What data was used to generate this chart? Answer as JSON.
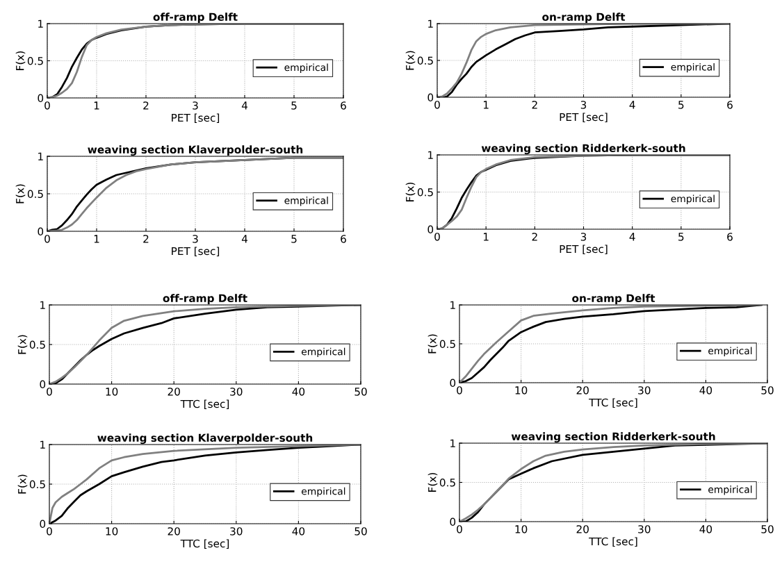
{
  "chart_data": [
    {
      "type": "line",
      "title": "off-ramp Delft",
      "xlabel": "PET [sec]",
      "ylabel": "F(x)",
      "xlim": [
        0,
        6
      ],
      "ylim": [
        0,
        1
      ],
      "xticks": [
        0,
        1,
        2,
        3,
        4,
        5,
        6
      ],
      "yticks": [
        0,
        0.5,
        1
      ],
      "grid": true,
      "legend": "right",
      "series": [
        {
          "name": "empirical",
          "color": "#000000",
          "x": [
            0,
            0.1,
            0.2,
            0.3,
            0.4,
            0.5,
            0.6,
            0.7,
            0.8,
            0.9,
            1.0,
            1.2,
            1.5,
            2,
            2.5,
            3,
            4,
            6
          ],
          "values": [
            0,
            0.01,
            0.05,
            0.15,
            0.27,
            0.42,
            0.54,
            0.65,
            0.73,
            0.78,
            0.81,
            0.86,
            0.91,
            0.96,
            0.98,
            0.99,
            1.0,
            1.0
          ]
        },
        {
          "color": "#808080",
          "x": [
            0,
            0.1,
            0.2,
            0.3,
            0.4,
            0.5,
            0.6,
            0.7,
            0.8,
            0.9,
            1.0,
            1.2,
            1.5,
            2,
            2.5,
            3,
            4,
            6
          ],
          "values": [
            0,
            0.01,
            0.03,
            0.07,
            0.12,
            0.2,
            0.35,
            0.55,
            0.71,
            0.78,
            0.82,
            0.87,
            0.92,
            0.96,
            0.98,
            0.99,
            1.0,
            1.0
          ]
        }
      ]
    },
    {
      "type": "line",
      "title": "on-ramp Delft",
      "xlabel": "PET [sec]",
      "ylabel": "F(x)",
      "xlim": [
        0,
        6
      ],
      "ylim": [
        0,
        1
      ],
      "xticks": [
        0,
        1,
        2,
        3,
        4,
        5,
        6
      ],
      "yticks": [
        0,
        0.5,
        1
      ],
      "grid": true,
      "legend": "right",
      "series": [
        {
          "name": "empirical",
          "color": "#000000",
          "x": [
            0,
            0.15,
            0.2,
            0.3,
            0.4,
            0.5,
            0.6,
            0.7,
            0.8,
            1.0,
            1.2,
            1.4,
            1.6,
            1.8,
            2.0,
            2.5,
            3,
            3.5,
            4,
            5,
            6
          ],
          "values": [
            0,
            0,
            0.01,
            0.07,
            0.17,
            0.25,
            0.32,
            0.41,
            0.48,
            0.57,
            0.65,
            0.72,
            0.79,
            0.84,
            0.88,
            0.9,
            0.92,
            0.95,
            0.96,
            0.98,
            1.0
          ]
        },
        {
          "color": "#808080",
          "x": [
            0,
            0.1,
            0.2,
            0.3,
            0.4,
            0.5,
            0.6,
            0.7,
            0.8,
            0.9,
            1.0,
            1.2,
            1.5,
            2,
            3,
            4,
            6
          ],
          "values": [
            0,
            0.01,
            0.05,
            0.12,
            0.2,
            0.32,
            0.47,
            0.64,
            0.76,
            0.82,
            0.86,
            0.91,
            0.95,
            0.98,
            0.99,
            1.0,
            1.0
          ]
        }
      ]
    },
    {
      "type": "line",
      "title": "weaving section Klaverpolder-south",
      "xlabel": "PET [sec]",
      "ylabel": "F(x)",
      "xlim": [
        0,
        6
      ],
      "ylim": [
        0,
        1
      ],
      "xticks": [
        0,
        1,
        2,
        3,
        4,
        5,
        6
      ],
      "yticks": [
        0,
        0.5,
        1
      ],
      "grid": true,
      "legend": "right",
      "series": [
        {
          "name": "empirical",
          "color": "#000000",
          "x": [
            0,
            0.1,
            0.2,
            0.3,
            0.4,
            0.5,
            0.6,
            0.7,
            0.8,
            0.9,
            1.0,
            1.2,
            1.4,
            1.6,
            2.0,
            2.5,
            3,
            4,
            5,
            6
          ],
          "values": [
            0,
            0.02,
            0.03,
            0.08,
            0.15,
            0.23,
            0.33,
            0.41,
            0.49,
            0.56,
            0.62,
            0.69,
            0.75,
            0.78,
            0.84,
            0.89,
            0.92,
            0.95,
            0.98,
            0.98
          ]
        },
        {
          "color": "#808080",
          "x": [
            0,
            0.2,
            0.3,
            0.4,
            0.5,
            0.6,
            0.7,
            0.8,
            1.0,
            1.2,
            1.4,
            1.6,
            1.8,
            2.0,
            2.5,
            3,
            4,
            5,
            6
          ],
          "values": [
            0,
            0.01,
            0.02,
            0.05,
            0.09,
            0.15,
            0.23,
            0.31,
            0.45,
            0.58,
            0.68,
            0.75,
            0.8,
            0.83,
            0.89,
            0.92,
            0.95,
            0.98,
            0.98
          ]
        }
      ]
    },
    {
      "type": "line",
      "title": "weaving section Ridderkerk-south",
      "xlabel": "PET [sec]",
      "ylabel": "F(x)",
      "xlim": [
        0,
        6
      ],
      "ylim": [
        0,
        1
      ],
      "xticks": [
        0,
        1,
        2,
        3,
        4,
        5,
        6
      ],
      "yticks": [
        0,
        0.5,
        1
      ],
      "grid": true,
      "legend": "right",
      "series": [
        {
          "name": "empirical",
          "color": "#000000",
          "x": [
            0,
            0.1,
            0.2,
            0.3,
            0.4,
            0.5,
            0.6,
            0.7,
            0.8,
            0.9,
            1.0,
            1.2,
            1.5,
            2,
            3,
            4,
            6
          ],
          "values": [
            0,
            0.01,
            0.06,
            0.15,
            0.28,
            0.42,
            0.53,
            0.63,
            0.72,
            0.77,
            0.8,
            0.86,
            0.92,
            0.96,
            0.99,
            1.0,
            1.0
          ]
        },
        {
          "color": "#808080",
          "x": [
            0,
            0.1,
            0.2,
            0.3,
            0.4,
            0.5,
            0.6,
            0.7,
            0.8,
            0.9,
            1.0,
            1.2,
            1.5,
            2,
            3,
            4,
            6
          ],
          "values": [
            0,
            0.01,
            0.06,
            0.11,
            0.17,
            0.26,
            0.42,
            0.57,
            0.7,
            0.77,
            0.81,
            0.87,
            0.93,
            0.97,
            0.99,
            1.0,
            1.0
          ]
        }
      ]
    },
    {
      "type": "line",
      "title": "off-ramp Delft",
      "xlabel": "TTC [sec]",
      "ylabel": "F(x)",
      "xlim": [
        0,
        50
      ],
      "ylim": [
        0,
        1
      ],
      "xticks": [
        0,
        10,
        20,
        30,
        40,
        50
      ],
      "yticks": [
        0,
        0.5,
        1
      ],
      "grid": true,
      "legend": "right",
      "series": [
        {
          "name": "empirical",
          "color": "#000000",
          "x": [
            0,
            1,
            2,
            3,
            4,
            5,
            6,
            7,
            8,
            10,
            12,
            15,
            18,
            20,
            25,
            30,
            35,
            40,
            50
          ],
          "values": [
            0,
            0.01,
            0.06,
            0.14,
            0.22,
            0.3,
            0.37,
            0.43,
            0.48,
            0.57,
            0.64,
            0.71,
            0.77,
            0.83,
            0.89,
            0.94,
            0.97,
            0.98,
            1.0
          ]
        },
        {
          "color": "#808080",
          "x": [
            0,
            1,
            2,
            3,
            4,
            5,
            6,
            7,
            8,
            10,
            12,
            15,
            20,
            25,
            30,
            40,
            50
          ],
          "values": [
            0,
            0.03,
            0.08,
            0.14,
            0.21,
            0.29,
            0.37,
            0.46,
            0.55,
            0.71,
            0.8,
            0.86,
            0.92,
            0.95,
            0.97,
            0.99,
            1.0
          ]
        }
      ]
    },
    {
      "type": "line",
      "title": "on-ramp Delft",
      "xlabel": "TTC [sec]",
      "ylabel": "F(x)",
      "xlim": [
        0,
        50
      ],
      "ylim": [
        0,
        1
      ],
      "xticks": [
        0,
        10,
        20,
        30,
        40,
        50
      ],
      "yticks": [
        0,
        0.5,
        1
      ],
      "grid": true,
      "legend": "right",
      "series": [
        {
          "name": "empirical",
          "color": "#000000",
          "x": [
            0,
            1,
            2,
            3,
            4,
            5,
            6,
            7,
            8,
            10,
            12,
            14,
            17,
            20,
            25,
            30,
            35,
            40,
            45,
            49
          ],
          "values": [
            0,
            0.02,
            0.06,
            0.13,
            0.2,
            0.29,
            0.37,
            0.45,
            0.54,
            0.65,
            0.72,
            0.78,
            0.82,
            0.85,
            0.88,
            0.92,
            0.94,
            0.96,
            0.97,
            1.0
          ]
        },
        {
          "color": "#808080",
          "x": [
            0,
            1,
            2,
            3,
            4,
            6,
            8,
            10,
            12,
            15,
            20,
            25,
            30,
            40,
            49
          ],
          "values": [
            0,
            0.08,
            0.18,
            0.28,
            0.37,
            0.52,
            0.66,
            0.8,
            0.86,
            0.89,
            0.93,
            0.96,
            0.98,
            0.99,
            1.0
          ]
        }
      ]
    },
    {
      "type": "line",
      "title": "weaving section Klaverpolder-south",
      "xlabel": "TTC [sec]",
      "ylabel": "F(x)",
      "xlim": [
        0,
        50
      ],
      "ylim": [
        0,
        1
      ],
      "xticks": [
        0,
        10,
        20,
        30,
        40,
        50
      ],
      "yticks": [
        0,
        0.5,
        1
      ],
      "grid": true,
      "legend": "right",
      "series": [
        {
          "name": "empirical",
          "color": "#000000",
          "x": [
            0,
            1,
            2,
            3,
            4,
            5,
            6,
            8,
            10,
            12,
            15,
            18,
            20,
            25,
            30,
            35,
            40,
            45,
            50
          ],
          "values": [
            0,
            0.04,
            0.1,
            0.2,
            0.28,
            0.36,
            0.41,
            0.5,
            0.6,
            0.65,
            0.72,
            0.78,
            0.8,
            0.86,
            0.9,
            0.93,
            0.96,
            0.98,
            1.0
          ]
        },
        {
          "color": "#808080",
          "x": [
            0,
            0.5,
            1,
            2,
            3,
            4,
            5,
            6,
            8,
            10,
            12,
            15,
            20,
            30,
            40,
            50
          ],
          "values": [
            0,
            0.2,
            0.27,
            0.34,
            0.39,
            0.44,
            0.5,
            0.56,
            0.7,
            0.8,
            0.84,
            0.88,
            0.92,
            0.96,
            0.98,
            1.0
          ]
        }
      ]
    },
    {
      "type": "line",
      "title": "weaving section Ridderkerk-south",
      "xlabel": "TTC [sec]",
      "ylabel": "F(x)",
      "xlim": [
        0,
        50
      ],
      "ylim": [
        0,
        1
      ],
      "xticks": [
        0,
        10,
        20,
        30,
        40,
        50
      ],
      "yticks": [
        0,
        0.5,
        1
      ],
      "grid": true,
      "legend": "right",
      "series": [
        {
          "name": "empirical",
          "color": "#000000",
          "x": [
            0,
            1,
            2,
            3,
            4,
            5,
            6,
            7,
            8,
            10,
            12,
            15,
            20,
            25,
            30,
            35,
            40,
            50
          ],
          "values": [
            0,
            0.0,
            0.05,
            0.12,
            0.22,
            0.3,
            0.38,
            0.46,
            0.54,
            0.61,
            0.68,
            0.77,
            0.85,
            0.89,
            0.93,
            0.97,
            0.98,
            1.0
          ]
        },
        {
          "color": "#808080",
          "x": [
            0,
            1,
            2,
            3,
            4,
            5,
            6,
            7,
            8,
            10,
            12,
            14,
            17,
            20,
            25,
            30,
            40,
            50
          ],
          "values": [
            0,
            0.04,
            0.09,
            0.15,
            0.22,
            0.3,
            0.38,
            0.46,
            0.55,
            0.67,
            0.77,
            0.84,
            0.89,
            0.92,
            0.95,
            0.97,
            0.99,
            1.0
          ]
        }
      ]
    }
  ]
}
